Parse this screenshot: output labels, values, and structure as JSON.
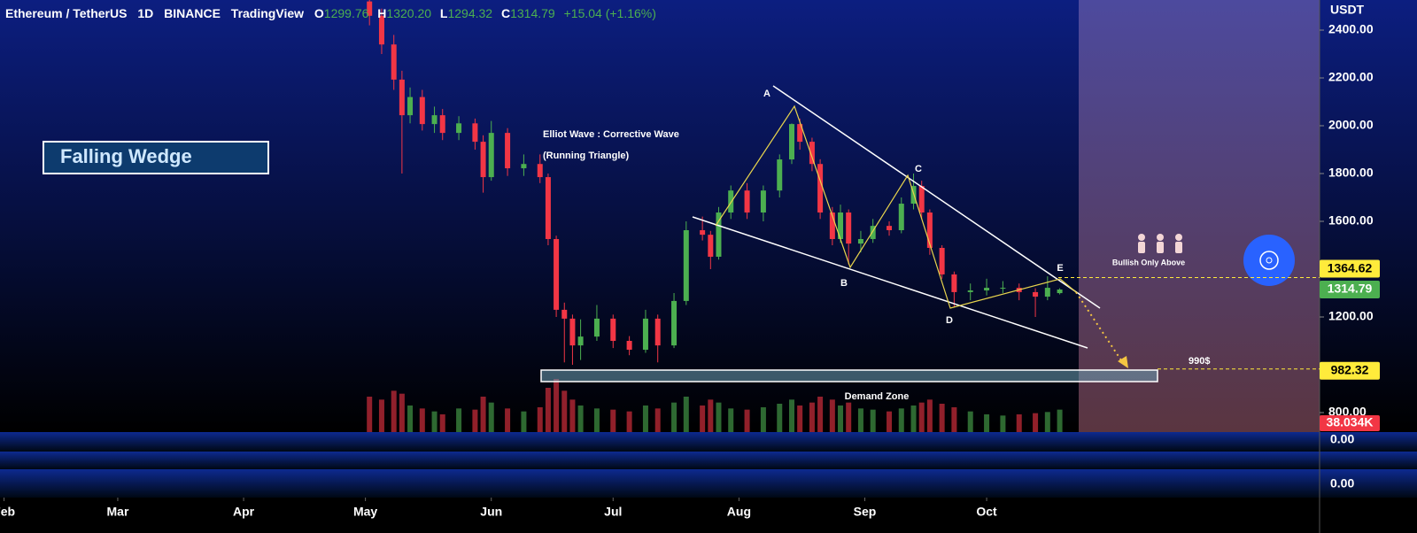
{
  "chart_data": {
    "type": "candlestick",
    "header": {
      "symbol": "Ethereum / TetherUS",
      "interval": "1D",
      "exchange": "BINANCE",
      "source": "TradingView",
      "ohlc": [
        {
          "key": "O",
          "value": "1299.76"
        },
        {
          "key": "H",
          "value": "1320.20"
        },
        {
          "key": "L",
          "value": "1294.32"
        },
        {
          "key": "C",
          "value": "1314.79"
        }
      ],
      "change": "+15.04 (+1.16%)"
    },
    "currency": "USDT",
    "x": [
      62,
      65,
      68,
      70,
      72,
      75,
      78,
      80,
      84,
      88,
      90,
      92,
      96,
      100,
      104,
      106,
      108,
      110,
      112,
      114,
      118,
      122,
      126,
      130,
      133,
      137,
      140,
      144,
      146,
      148,
      151,
      155,
      159,
      163,
      166,
      168,
      171,
      173,
      176,
      178,
      180,
      183,
      186,
      190,
      193,
      196,
      198,
      200,
      203,
      206,
      210,
      214,
      218,
      222,
      226,
      229,
      232
    ],
    "open": [
      2520,
      2460,
      2340,
      2193,
      2044,
      2120,
      2007,
      2044,
      1970,
      2010,
      1933,
      1785,
      1970,
      1822,
      1840,
      1785,
      1526,
      1230,
      1193,
      1081,
      1118,
      1193,
      1100,
      1063,
      1193,
      1081,
      1267,
      1563,
      1544,
      1452,
      1637,
      1729,
      1637,
      1729,
      1859,
      2007,
      1933,
      1840,
      1637,
      1526,
      1637,
      1507,
      1526,
      1581,
      1563,
      1674,
      1748,
      1637,
      1489,
      1378,
      1304,
      1311,
      1322,
      1322,
      1304,
      1285,
      1299.76
    ],
    "high": [
      2560,
      2490,
      2380,
      2230,
      2160,
      2150,
      2080,
      2070,
      2040,
      2030,
      1960,
      2020,
      1990,
      1880,
      1880,
      1800,
      1540,
      1260,
      1210,
      1190,
      1250,
      1210,
      1120,
      1230,
      1210,
      1300,
      1600,
      1620,
      1560,
      1660,
      1750,
      1760,
      1750,
      1880,
      2010,
      2030,
      1950,
      1860,
      1660,
      1670,
      1650,
      1560,
      1610,
      1600,
      1700,
      1800,
      1770,
      1650,
      1500,
      1390,
      1340,
      1360,
      1350,
      1340,
      1320,
      1370,
      1320.2
    ],
    "low": [
      2420,
      2300,
      2150,
      1800,
      2010,
      1980,
      1970,
      1940,
      1940,
      1900,
      1720,
      1770,
      1790,
      1790,
      1760,
      1500,
      1200,
      1010,
      1000,
      1020,
      1100,
      1070,
      1040,
      1050,
      1010,
      1070,
      1250,
      1520,
      1400,
      1440,
      1610,
      1610,
      1600,
      1700,
      1840,
      1900,
      1810,
      1610,
      1500,
      1510,
      1420,
      1470,
      1510,
      1540,
      1550,
      1650,
      1610,
      1460,
      1360,
      1240,
      1270,
      1290,
      1300,
      1270,
      1200,
      1270,
      1294.32
    ],
    "close": [
      2460,
      2340,
      2193,
      2044,
      2120,
      2007,
      2044,
      1970,
      2010,
      1933,
      1785,
      1970,
      1822,
      1840,
      1785,
      1526,
      1230,
      1193,
      1081,
      1118,
      1193,
      1100,
      1063,
      1193,
      1081,
      1267,
      1563,
      1544,
      1452,
      1637,
      1729,
      1637,
      1729,
      1859,
      2007,
      1933,
      1840,
      1637,
      1526,
      1637,
      1507,
      1526,
      1581,
      1563,
      1674,
      1748,
      1637,
      1489,
      1378,
      1304,
      1311,
      1322,
      1322,
      1304,
      1285,
      1322,
      1314.79
    ],
    "volume": [
      60,
      55,
      70,
      65,
      45,
      40,
      35,
      30,
      40,
      38,
      60,
      50,
      40,
      35,
      42,
      75,
      90,
      70,
      55,
      45,
      40,
      38,
      35,
      45,
      40,
      50,
      60,
      45,
      55,
      50,
      40,
      38,
      42,
      48,
      55,
      45,
      50,
      60,
      55,
      45,
      50,
      40,
      38,
      35,
      40,
      45,
      50,
      55,
      48,
      42,
      35,
      30,
      28,
      30,
      32,
      34,
      38.034
    ],
    "volume_last_label": "38.034K",
    "volume_lim": [
      0,
      120
    ],
    "up_color": "#4caf50",
    "down_color": "#f23645",
    "xlim": [
      -29,
      296
    ],
    "xticks": [
      {
        "value": -28,
        "label": "Feb"
      },
      {
        "value": 0,
        "label": "Mar"
      },
      {
        "value": 31,
        "label": "Apr"
      },
      {
        "value": 61,
        "label": "May"
      },
      {
        "value": 92,
        "label": "Jun"
      },
      {
        "value": 122,
        "label": "Jul"
      },
      {
        "value": 153,
        "label": "Aug"
      },
      {
        "value": 184,
        "label": "Sep"
      },
      {
        "value": 214,
        "label": "Oct"
      }
    ],
    "ylim": [
      718.5,
      2526
    ],
    "yticks": [
      {
        "value": 2400,
        "label": "2400.00"
      },
      {
        "value": 2200,
        "label": "2200.00"
      },
      {
        "value": 2000,
        "label": "2000.00"
      },
      {
        "value": 1800,
        "label": "1800.00"
      },
      {
        "value": 1600,
        "label": "1600.00"
      },
      {
        "value": 1200,
        "label": "1200.00"
      },
      {
        "value": 800,
        "label": "800.00"
      }
    ],
    "price_lines": [
      {
        "value": 1364.62,
        "color": "#ffeb3b"
      },
      {
        "value": 982.32,
        "color": "#ffeb3b"
      }
    ],
    "indicator_labels": [
      "0.00",
      "0.00"
    ],
    "annotations": {
      "pattern": "Falling Wedge",
      "wave_title": "Elliot Wave : Corrective Wave",
      "wave_subtitle": "(Running Triangle)",
      "waves": [
        "A",
        "B",
        "C",
        "D",
        "E"
      ],
      "bullish": "Bullish Only Above",
      "target": "990$",
      "zone": "Demand Zone"
    }
  }
}
